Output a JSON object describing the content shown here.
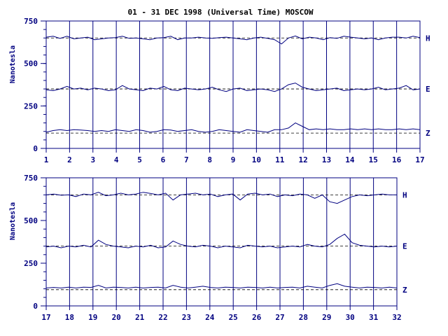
{
  "chart_data": {
    "type": "line",
    "title": "01 - 31 DEC 1998 (Universal Time) MOSCOW",
    "ylabel": "Nanotesla",
    "colors": {
      "ink": "#000080",
      "title": "#000000"
    },
    "grid": "vertical-day-lines",
    "panels": [
      {
        "x_range": [
          1,
          17
        ],
        "x_ticks": [
          "1",
          "2",
          "3",
          "4",
          "5",
          "6",
          "7",
          "8",
          "9",
          "10",
          "11",
          "12",
          "13",
          "14",
          "15",
          "16",
          "17"
        ],
        "ylim": [
          0,
          750
        ],
        "y_ticks": [
          "0",
          "250",
          "500",
          "750"
        ],
        "series": [
          {
            "name": "H",
            "baseline": 650,
            "values": [
              655,
              660,
              648,
              660,
              645,
              650,
              655,
              640,
              645,
              650,
              652,
              660,
              648,
              650,
              645,
              640,
              650,
              652,
              660,
              640,
              650,
              650,
              655,
              650,
              648,
              652,
              655,
              650,
              645,
              640,
              650,
              655,
              648,
              640,
              615,
              650,
              662,
              645,
              655,
              650,
              640,
              652,
              648,
              660,
              655,
              650,
              645,
              650,
              640,
              650,
              655,
              655,
              650,
              660,
              652
            ]
          },
          {
            "name": "E",
            "baseline": 350,
            "values": [
              345,
              340,
              350,
              365,
              350,
              355,
              345,
              355,
              350,
              340,
              345,
              370,
              350,
              345,
              340,
              355,
              350,
              365,
              345,
              340,
              355,
              350,
              345,
              350,
              360,
              345,
              335,
              350,
              355,
              340,
              345,
              350,
              345,
              335,
              350,
              375,
              385,
              360,
              350,
              340,
              345,
              350,
              355,
              340,
              345,
              350,
              345,
              350,
              360,
              345,
              350,
              355,
              370,
              345,
              350
            ]
          },
          {
            "name": "Z",
            "baseline": 90,
            "values": [
              95,
              105,
              110,
              105,
              110,
              108,
              105,
              100,
              105,
              100,
              110,
              105,
              100,
              110,
              105,
              95,
              100,
              110,
              108,
              100,
              105,
              110,
              100,
              95,
              100,
              110,
              105,
              100,
              95,
              110,
              105,
              100,
              95,
              110,
              110,
              120,
              150,
              130,
              110,
              115,
              110,
              115,
              110,
              110,
              115,
              110,
              115,
              110,
              115,
              110,
              110,
              115,
              110,
              115,
              110
            ]
          }
        ]
      },
      {
        "x_range": [
          17,
          32
        ],
        "x_ticks": [
          "17",
          "18",
          "19",
          "20",
          "21",
          "22",
          "23",
          "24",
          "25",
          "26",
          "27",
          "28",
          "29",
          "30",
          "31",
          "32"
        ],
        "ylim": [
          0,
          750
        ],
        "y_ticks": [
          "0",
          "250",
          "500",
          "750"
        ],
        "series": [
          {
            "name": "H",
            "baseline": 650,
            "values": [
              650,
              655,
              648,
              650,
              640,
              655,
              650,
              665,
              645,
              650,
              660,
              650,
              655,
              665,
              658,
              650,
              660,
              620,
              650,
              655,
              660,
              650,
              655,
              640,
              650,
              655,
              620,
              655,
              660,
              650,
              655,
              640,
              650,
              645,
              655,
              650,
              630,
              650,
              610,
              600,
              620,
              640,
              650,
              645,
              650,
              655,
              650,
              650
            ]
          },
          {
            "name": "E",
            "baseline": 350,
            "values": [
              345,
              350,
              340,
              350,
              345,
              355,
              345,
              385,
              360,
              350,
              345,
              340,
              350,
              345,
              355,
              340,
              345,
              380,
              360,
              350,
              345,
              355,
              350,
              340,
              350,
              345,
              340,
              355,
              350,
              345,
              350,
              340,
              345,
              350,
              345,
              360,
              350,
              345,
              360,
              395,
              420,
              370,
              355,
              350,
              345,
              350,
              345,
              350
            ]
          },
          {
            "name": "Z",
            "baseline": 95,
            "values": [
              105,
              108,
              105,
              110,
              105,
              110,
              108,
              120,
              105,
              110,
              108,
              105,
              110,
              105,
              108,
              110,
              105,
              120,
              110,
              105,
              110,
              115,
              108,
              105,
              110,
              108,
              105,
              110,
              108,
              105,
              110,
              105,
              108,
              110,
              105,
              115,
              110,
              105,
              120,
              130,
              115,
              110,
              105,
              110,
              108,
              105,
              110,
              105
            ]
          }
        ]
      }
    ]
  }
}
